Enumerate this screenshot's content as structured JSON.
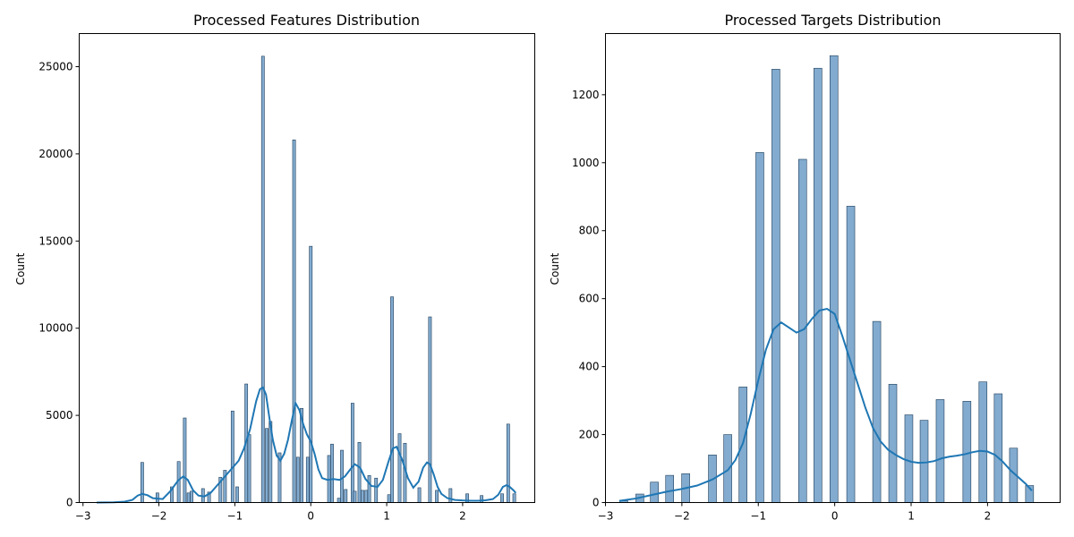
{
  "chart_data": [
    {
      "type": "bar",
      "title": "Processed Features Distribution",
      "xlabel": "",
      "ylabel": "Count",
      "xlim": [
        -3.05,
        2.95
      ],
      "ylim": [
        0,
        26900
      ],
      "xticks": [
        -3,
        -2,
        -1,
        0,
        1,
        2
      ],
      "yticks": [
        0,
        5000,
        10000,
        15000,
        20000,
        25000
      ],
      "bar_width": 0.038,
      "bars": [
        {
          "x": -2.22,
          "y": 2300
        },
        {
          "x": -2.02,
          "y": 550
        },
        {
          "x": -1.83,
          "y": 900
        },
        {
          "x": -1.74,
          "y": 2350
        },
        {
          "x": -1.66,
          "y": 4850
        },
        {
          "x": -1.61,
          "y": 550
        },
        {
          "x": -1.57,
          "y": 650
        },
        {
          "x": -1.42,
          "y": 800
        },
        {
          "x": -1.34,
          "y": 600
        },
        {
          "x": -1.19,
          "y": 1450
        },
        {
          "x": -1.13,
          "y": 1850
        },
        {
          "x": -1.03,
          "y": 5250
        },
        {
          "x": -0.97,
          "y": 900
        },
        {
          "x": -0.85,
          "y": 6800
        },
        {
          "x": -0.81,
          "y": 3900
        },
        {
          "x": -0.63,
          "y": 25600
        },
        {
          "x": -0.58,
          "y": 4250
        },
        {
          "x": -0.53,
          "y": 4650
        },
        {
          "x": -0.41,
          "y": 2850
        },
        {
          "x": -0.22,
          "y": 20800
        },
        {
          "x": -0.17,
          "y": 2600
        },
        {
          "x": -0.12,
          "y": 5400
        },
        {
          "x": -0.04,
          "y": 2600
        },
        {
          "x": 0.0,
          "y": 14700
        },
        {
          "x": 0.24,
          "y": 2700
        },
        {
          "x": 0.28,
          "y": 3350
        },
        {
          "x": 0.37,
          "y": 250
        },
        {
          "x": 0.41,
          "y": 3000
        },
        {
          "x": 0.46,
          "y": 750
        },
        {
          "x": 0.55,
          "y": 5700
        },
        {
          "x": 0.58,
          "y": 650
        },
        {
          "x": 0.64,
          "y": 3450
        },
        {
          "x": 0.68,
          "y": 700
        },
        {
          "x": 0.73,
          "y": 700
        },
        {
          "x": 0.77,
          "y": 1550
        },
        {
          "x": 0.86,
          "y": 1400
        },
        {
          "x": 1.03,
          "y": 450
        },
        {
          "x": 1.07,
          "y": 11800
        },
        {
          "x": 1.17,
          "y": 3950
        },
        {
          "x": 1.24,
          "y": 3400
        },
        {
          "x": 1.43,
          "y": 850
        },
        {
          "x": 1.57,
          "y": 10650
        },
        {
          "x": 1.66,
          "y": 700
        },
        {
          "x": 1.84,
          "y": 800
        },
        {
          "x": 2.06,
          "y": 500
        },
        {
          "x": 2.25,
          "y": 400
        },
        {
          "x": 2.52,
          "y": 500
        },
        {
          "x": 2.6,
          "y": 4500
        },
        {
          "x": 2.68,
          "y": 500
        }
      ],
      "kde": {
        "x": [
          -2.82,
          -2.6,
          -2.45,
          -2.35,
          -2.28,
          -2.22,
          -2.15,
          -2.08,
          -1.95,
          -1.85,
          -1.75,
          -1.68,
          -1.62,
          -1.55,
          -1.48,
          -1.4,
          -1.32,
          -1.25,
          -1.15,
          -1.05,
          -0.95,
          -0.88,
          -0.8,
          -0.72,
          -0.67,
          -0.63,
          -0.59,
          -0.55,
          -0.5,
          -0.45,
          -0.4,
          -0.35,
          -0.3,
          -0.25,
          -0.2,
          -0.15,
          -0.1,
          -0.05,
          0.0,
          0.05,
          0.1,
          0.15,
          0.22,
          0.3,
          0.38,
          0.45,
          0.52,
          0.58,
          0.65,
          0.72,
          0.8,
          0.88,
          0.95,
          1.02,
          1.08,
          1.13,
          1.2,
          1.28,
          1.35,
          1.42,
          1.48,
          1.53,
          1.57,
          1.62,
          1.67,
          1.72,
          1.8,
          1.9,
          2.0,
          2.1,
          2.2,
          2.3,
          2.4,
          2.47,
          2.53,
          2.58,
          2.62,
          2.67,
          2.7
        ],
        "y": [
          0,
          10,
          50,
          150,
          400,
          500,
          420,
          250,
          200,
          650,
          1250,
          1500,
          1300,
          700,
          400,
          350,
          550,
          900,
          1400,
          1900,
          2400,
          3100,
          4200,
          5800,
          6500,
          6600,
          6200,
          5000,
          3600,
          2700,
          2400,
          2800,
          3600,
          4700,
          5700,
          5300,
          4500,
          3900,
          3500,
          2800,
          1900,
          1400,
          1300,
          1350,
          1300,
          1500,
          1900,
          2200,
          2000,
          1350,
          950,
          900,
          1300,
          2300,
          3100,
          3200,
          2500,
          1400,
          850,
          1200,
          2000,
          2300,
          2200,
          1600,
          900,
          500,
          250,
          150,
          120,
          100,
          100,
          130,
          200,
          450,
          900,
          1000,
          900,
          700,
          550
        ]
      }
    },
    {
      "type": "bar",
      "title": "Processed Targets Distribution",
      "xlabel": "",
      "ylabel": "Count",
      "xlim": [
        -3.0,
        2.95
      ],
      "ylim": [
        0,
        1380
      ],
      "xticks": [
        -3,
        -2,
        -1,
        0,
        1,
        2
      ],
      "yticks": [
        0,
        200,
        400,
        600,
        800,
        1000,
        1200
      ],
      "bar_width": 0.105,
      "bars": [
        {
          "x": -2.76,
          "y": 5
        },
        {
          "x": -2.55,
          "y": 25
        },
        {
          "x": -2.36,
          "y": 60
        },
        {
          "x": -2.16,
          "y": 80
        },
        {
          "x": -1.95,
          "y": 85
        },
        {
          "x": -1.6,
          "y": 140
        },
        {
          "x": -1.4,
          "y": 200
        },
        {
          "x": -1.2,
          "y": 340
        },
        {
          "x": -0.98,
          "y": 1030
        },
        {
          "x": -0.77,
          "y": 1275
        },
        {
          "x": -0.42,
          "y": 1010
        },
        {
          "x": -0.22,
          "y": 1278
        },
        {
          "x": -0.01,
          "y": 1315
        },
        {
          "x": 0.21,
          "y": 872
        },
        {
          "x": 0.55,
          "y": 533
        },
        {
          "x": 0.76,
          "y": 348
        },
        {
          "x": 0.97,
          "y": 258
        },
        {
          "x": 1.17,
          "y": 242
        },
        {
          "x": 1.38,
          "y": 303
        },
        {
          "x": 1.73,
          "y": 298
        },
        {
          "x": 1.94,
          "y": 355
        },
        {
          "x": 2.14,
          "y": 320
        },
        {
          "x": 2.34,
          "y": 160
        },
        {
          "x": 2.55,
          "y": 50
        }
      ],
      "kde": {
        "x": [
          -2.82,
          -2.6,
          -2.4,
          -2.2,
          -2.0,
          -1.8,
          -1.6,
          -1.4,
          -1.3,
          -1.2,
          -1.1,
          -1.0,
          -0.9,
          -0.8,
          -0.7,
          -0.6,
          -0.5,
          -0.4,
          -0.3,
          -0.2,
          -0.1,
          0.0,
          0.1,
          0.2,
          0.3,
          0.4,
          0.5,
          0.6,
          0.7,
          0.8,
          0.9,
          1.0,
          1.1,
          1.2,
          1.3,
          1.4,
          1.5,
          1.6,
          1.7,
          1.8,
          1.9,
          2.0,
          2.1,
          2.2,
          2.3,
          2.4,
          2.5,
          2.58
        ],
        "y": [
          5,
          12,
          22,
          32,
          40,
          50,
          68,
          95,
          125,
          175,
          260,
          360,
          450,
          510,
          530,
          515,
          500,
          510,
          540,
          565,
          570,
          555,
          490,
          420,
          350,
          280,
          220,
          180,
          155,
          140,
          128,
          120,
          117,
          118,
          122,
          130,
          135,
          138,
          142,
          148,
          152,
          150,
          140,
          120,
          95,
          75,
          55,
          35
        ]
      }
    }
  ]
}
